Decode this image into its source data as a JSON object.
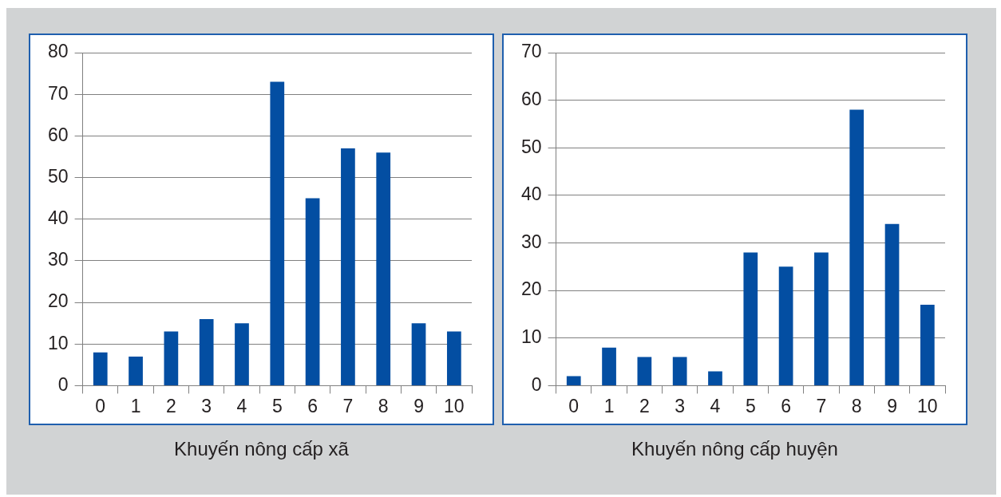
{
  "chart_data": [
    {
      "type": "bar",
      "xlabel": "Khuyến nông cấp xã",
      "categories": [
        "0",
        "1",
        "2",
        "3",
        "4",
        "5",
        "6",
        "7",
        "8",
        "9",
        "10"
      ],
      "values": [
        8,
        7,
        13,
        16,
        15,
        73,
        45,
        57,
        56,
        15,
        13
      ],
      "color": "#034ea2",
      "ylim": [
        0,
        80
      ],
      "yticks": [
        0,
        10,
        20,
        30,
        40,
        50,
        60,
        70,
        80
      ],
      "grid": "y",
      "legend": false
    },
    {
      "type": "bar",
      "xlabel": "Khuyến nông cấp huyện",
      "categories": [
        "0",
        "1",
        "2",
        "3",
        "4",
        "5",
        "6",
        "7",
        "8",
        "9",
        "10"
      ],
      "values": [
        2,
        8,
        6,
        6,
        3,
        28,
        25,
        28,
        58,
        34,
        17
      ],
      "color": "#034ea2",
      "ylim": [
        0,
        70
      ],
      "yticks": [
        0,
        10,
        20,
        30,
        40,
        50,
        60,
        70
      ],
      "grid": "y",
      "legend": false
    }
  ]
}
